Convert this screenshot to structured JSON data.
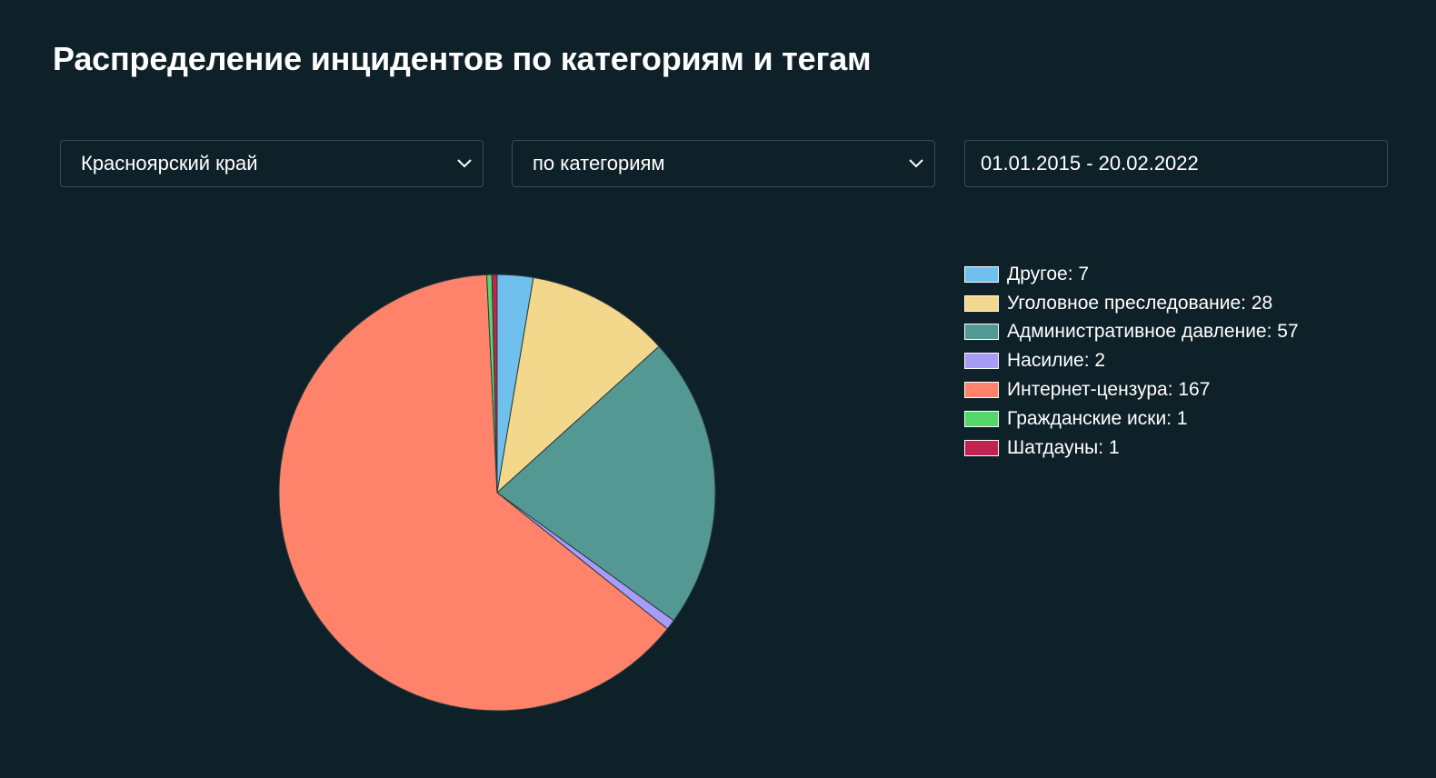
{
  "header": {
    "title": "Распределение инцидентов по категориям и тегам"
  },
  "filters": {
    "region": "Красноярский край",
    "grouping": "по категориям",
    "date_range": "01.01.2015 - 20.02.2022"
  },
  "legend": [
    {
      "label": "Другое: 7",
      "color": "#6fc0ec"
    },
    {
      "label": "Уголовное преследование: 28",
      "color": "#f3d78a"
    },
    {
      "label": "Административное давление: 57",
      "color": "#539892"
    },
    {
      "label": "Насилие: 2",
      "color": "#a79cf7"
    },
    {
      "label": "Интернет-цензура: 167",
      "color": "#fe836a"
    },
    {
      "label": "Гражданские иски: 1",
      "color": "#54d76a"
    },
    {
      "label": "Шатдауны: 1",
      "color": "#c2224e"
    }
  ],
  "chart_data": {
    "type": "pie",
    "categories": [
      "Другое",
      "Уголовное преследование",
      "Административное давление",
      "Насилие",
      "Интернет-цензура",
      "Гражданские иски",
      "Шатдауны"
    ],
    "values": [
      7,
      28,
      57,
      2,
      167,
      1,
      1
    ],
    "colors": [
      "#6fc0ec",
      "#f3d78a",
      "#539892",
      "#a79cf7",
      "#fe836a",
      "#54d76a",
      "#c2224e"
    ],
    "title": "",
    "legend_position": "right"
  }
}
